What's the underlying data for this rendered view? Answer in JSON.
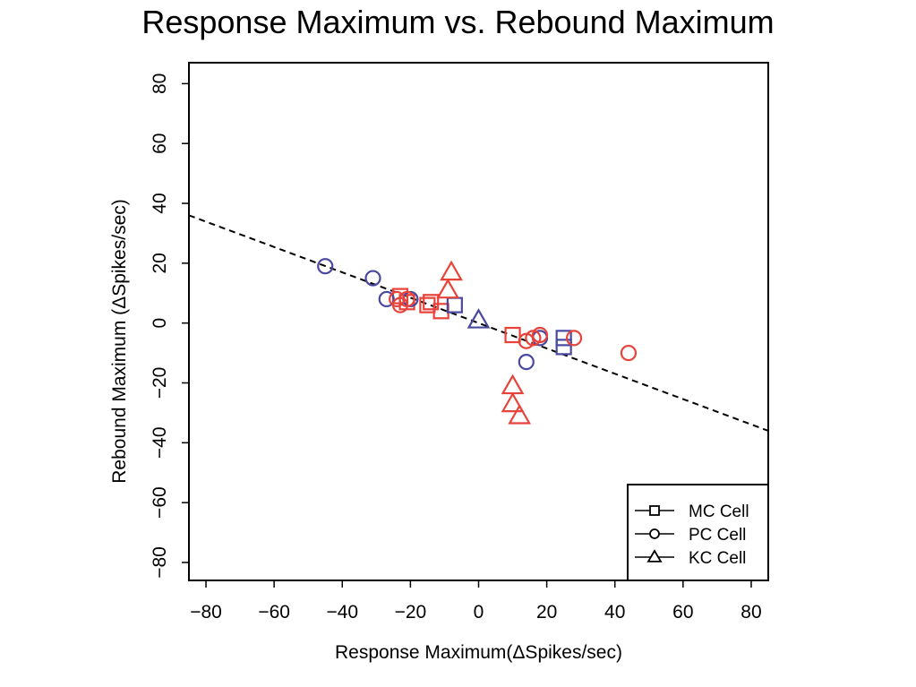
{
  "chart_data": {
    "type": "scatter",
    "title": "Response Maximum vs. Rebound Maximum",
    "xlabel": "Response Maximum(ΔSpikes/sec)",
    "ylabel": "Rebound Maximum (ΔSpikes/sec)",
    "xlim": [
      -85,
      85
    ],
    "ylim": [
      -86,
      87
    ],
    "x_ticks": [
      -80,
      -60,
      -40,
      -20,
      0,
      20,
      40,
      60,
      80
    ],
    "y_ticks": [
      -80,
      -60,
      -40,
      -20,
      0,
      20,
      40,
      60,
      80
    ],
    "x_tick_labels": [
      "−80",
      "−60",
      "−40",
      "−20",
      "0",
      "20",
      "40",
      "60",
      "80"
    ],
    "y_tick_labels": [
      "−80",
      "−60",
      "−40",
      "−20",
      "0",
      "20",
      "40",
      "60",
      "80"
    ],
    "grid": false,
    "legend_position": "bottom-right",
    "colors": {
      "red": "#e8433a",
      "blue": "#4848a0",
      "axis": "#000000"
    },
    "fit_line": {
      "style": "dashed",
      "points": [
        [
          -85,
          36
        ],
        [
          85,
          -36
        ]
      ]
    },
    "legend": [
      {
        "label": "MC Cell",
        "marker": "square"
      },
      {
        "label": "PC Cell",
        "marker": "circle"
      },
      {
        "label": "KC Cell",
        "marker": "triangle"
      }
    ],
    "series": [
      {
        "name": "MC Cell",
        "marker": "square",
        "points": [
          {
            "x": -23,
            "y": 9,
            "color": "red"
          },
          {
            "x": -21,
            "y": 7,
            "color": "red"
          },
          {
            "x": -15,
            "y": 6,
            "color": "red"
          },
          {
            "x": -14,
            "y": 7,
            "color": "red"
          },
          {
            "x": -11,
            "y": 4,
            "color": "red"
          },
          {
            "x": 10,
            "y": -4,
            "color": "red"
          },
          {
            "x": -7,
            "y": 6,
            "color": "blue"
          },
          {
            "x": 25,
            "y": -5,
            "color": "blue"
          },
          {
            "x": 25,
            "y": -8,
            "color": "blue"
          }
        ]
      },
      {
        "name": "PC Cell",
        "marker": "circle",
        "points": [
          {
            "x": -45,
            "y": 19,
            "color": "blue"
          },
          {
            "x": -31,
            "y": 15,
            "color": "blue"
          },
          {
            "x": -27,
            "y": 8,
            "color": "blue"
          },
          {
            "x": -20,
            "y": 8,
            "color": "blue"
          },
          {
            "x": 14,
            "y": -13,
            "color": "blue"
          },
          {
            "x": 18,
            "y": -5,
            "color": "blue"
          },
          {
            "x": -24,
            "y": 8,
            "color": "red"
          },
          {
            "x": -23,
            "y": 6,
            "color": "red"
          },
          {
            "x": -21,
            "y": 8,
            "color": "red"
          },
          {
            "x": 14,
            "y": -6,
            "color": "red"
          },
          {
            "x": 16,
            "y": -5,
            "color": "red"
          },
          {
            "x": 18,
            "y": -4,
            "color": "red"
          },
          {
            "x": 28,
            "y": -5,
            "color": "red"
          },
          {
            "x": 44,
            "y": -10,
            "color": "red"
          }
        ]
      },
      {
        "name": "KC Cell",
        "marker": "triangle",
        "points": [
          {
            "x": 0,
            "y": 1,
            "color": "blue"
          },
          {
            "x": -8,
            "y": 17,
            "color": "red"
          },
          {
            "x": -9,
            "y": 11,
            "color": "red"
          },
          {
            "x": 10,
            "y": -21,
            "color": "red"
          },
          {
            "x": 10,
            "y": -27,
            "color": "red"
          },
          {
            "x": 12,
            "y": -31,
            "color": "red"
          }
        ]
      }
    ]
  }
}
